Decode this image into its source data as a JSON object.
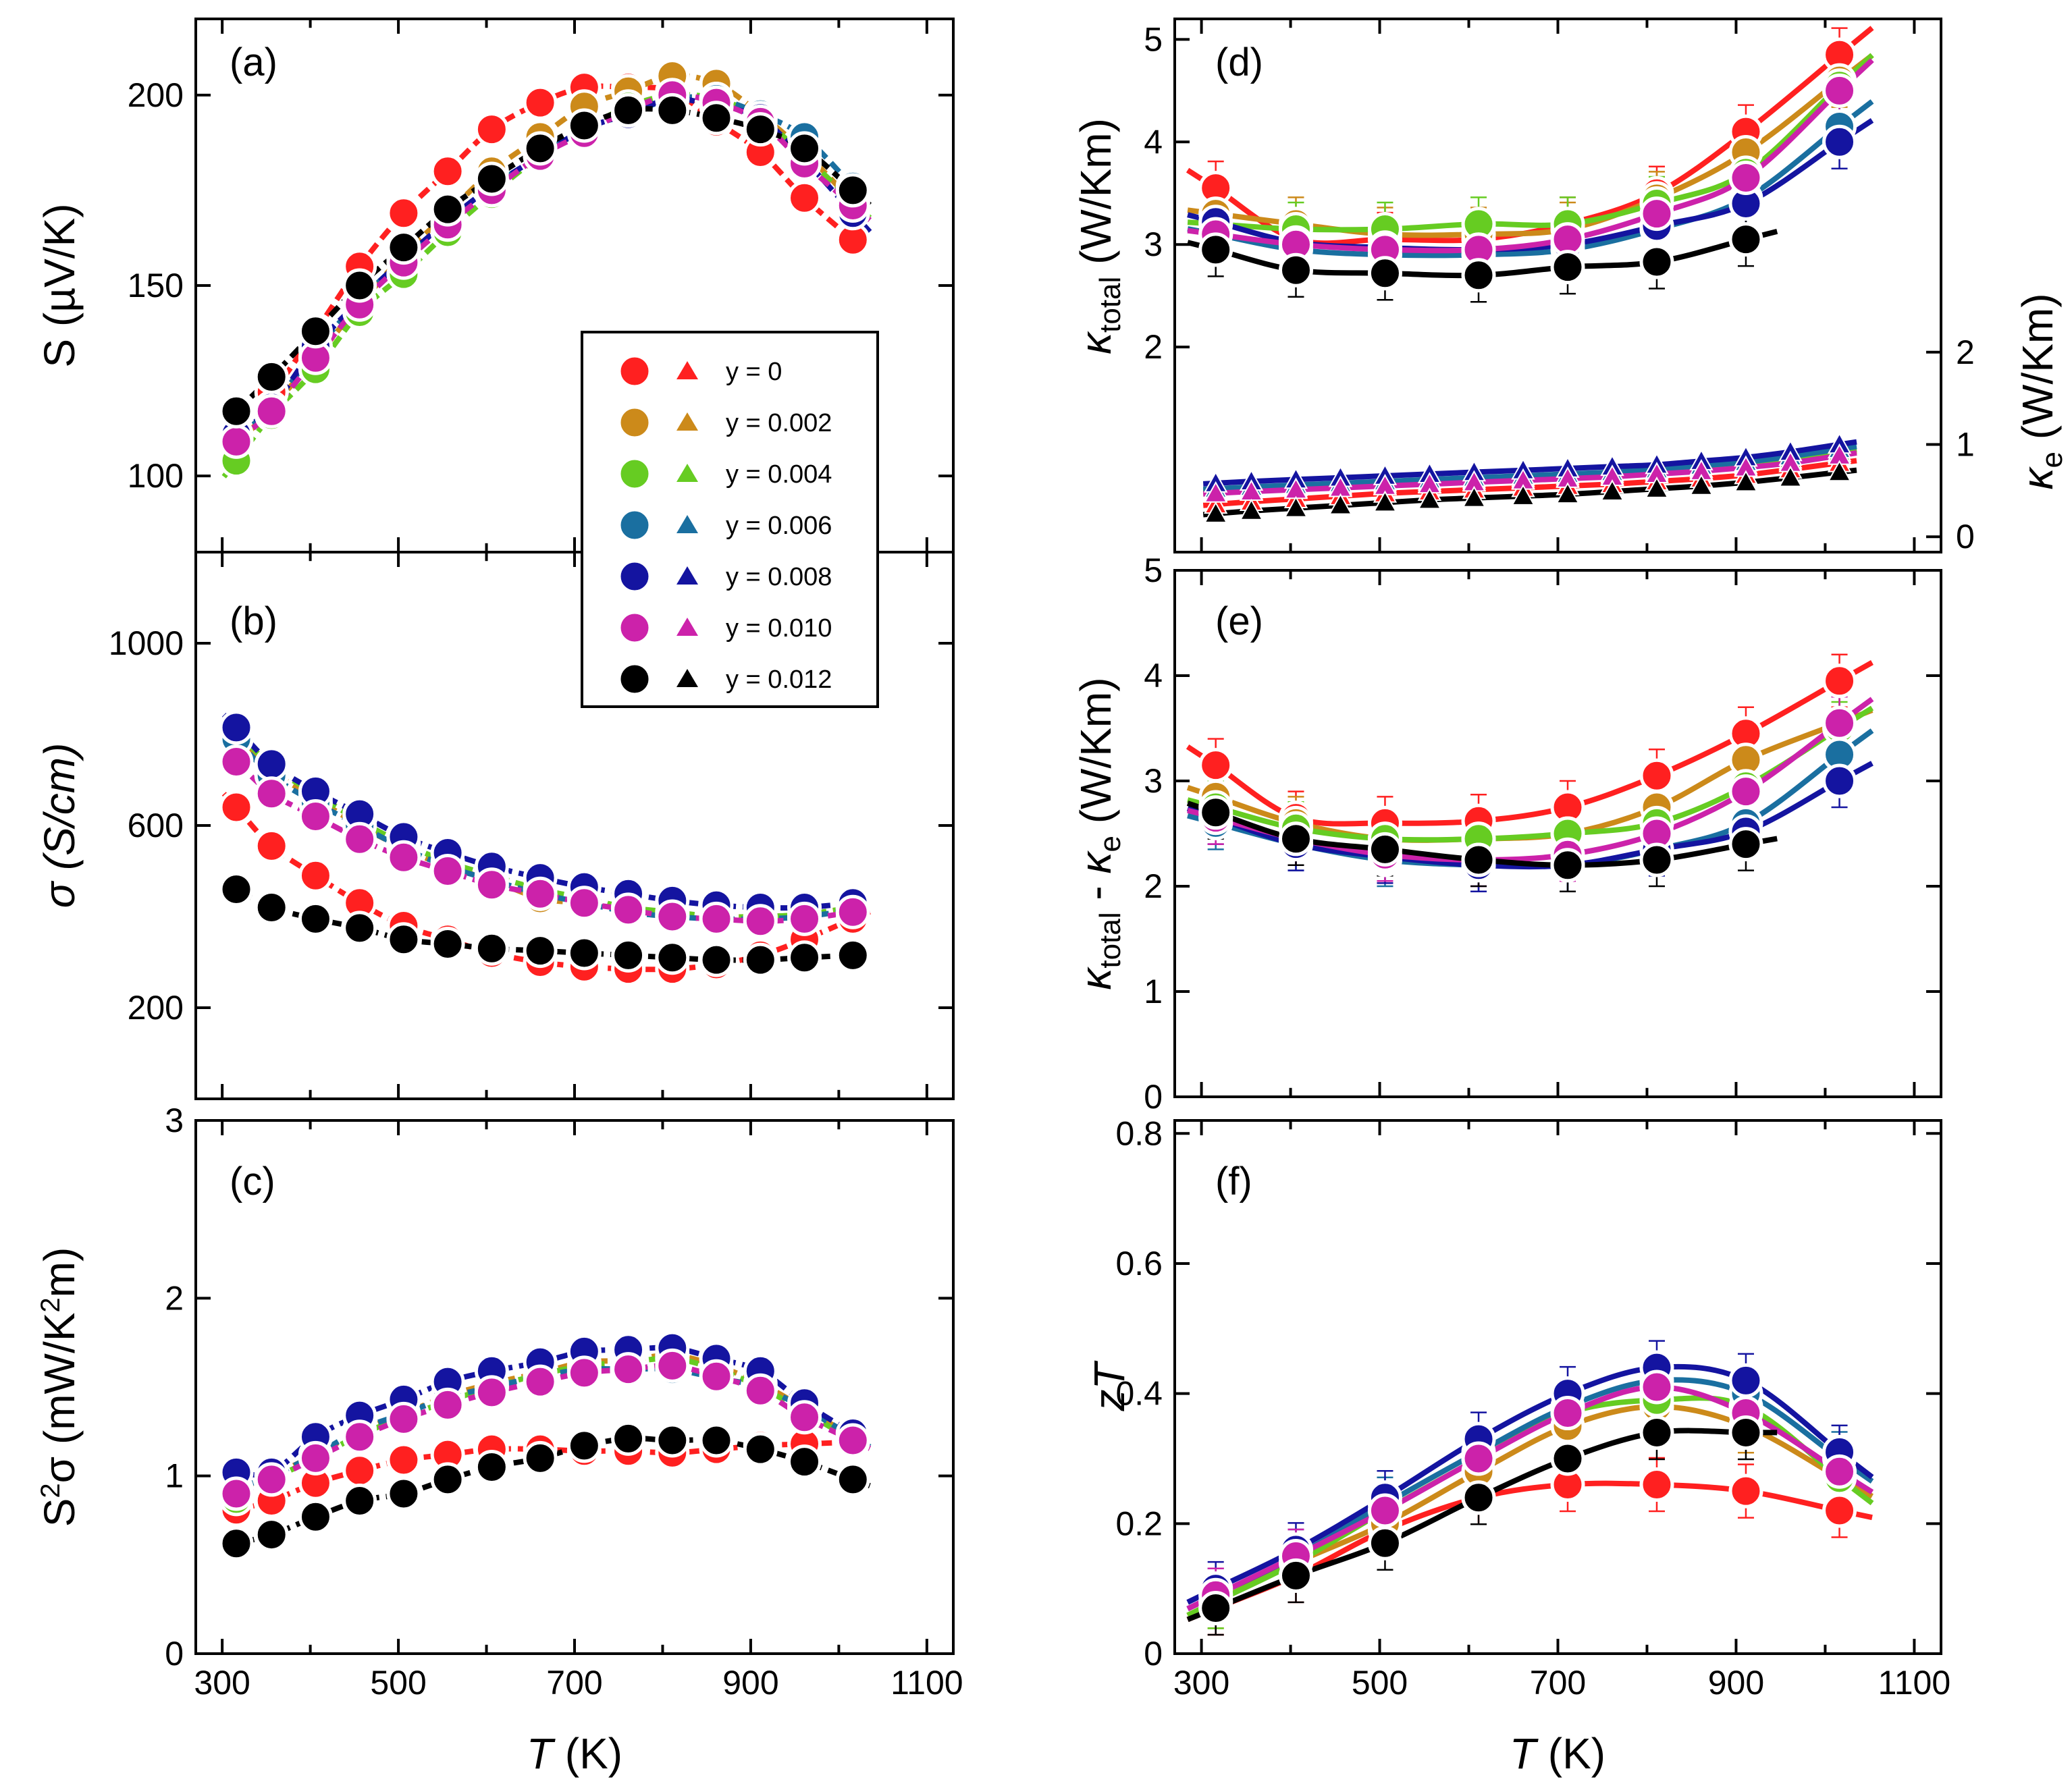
{
  "figure": {
    "x_axis_label_var": "T",
    "x_axis_label_unit": " (K)",
    "x_ticks": [
      300,
      500,
      700,
      900,
      1100
    ]
  },
  "legend": {
    "entries": [
      {
        "label": "y = 0",
        "color": "#ff2020"
      },
      {
        "label": "y = 0.002",
        "color": "#cc8a1a"
      },
      {
        "label": "y = 0.004",
        "color": "#66cc22"
      },
      {
        "label": "y = 0.006",
        "color": "#1a6fa0"
      },
      {
        "label": "y = 0.008",
        "color": "#1414a0"
      },
      {
        "label": "y = 0.010",
        "color": "#cc22aa"
      },
      {
        "label": "y = 0.012",
        "color": "#000000"
      }
    ]
  },
  "chart_data": [
    {
      "panel": "(a)",
      "type": "scatter",
      "ylabel": "S (µV/K)",
      "xlim": [
        270,
        1130
      ],
      "ylim": [
        80,
        220
      ],
      "yticks": [
        100,
        150,
        200
      ],
      "x": [
        316,
        356,
        406,
        456,
        506,
        556,
        606,
        661,
        711,
        761,
        811,
        861,
        911,
        961,
        1016
      ],
      "series": [
        {
          "name": "y = 0",
          "values": [
            116,
            122,
            138,
            155,
            169,
            180,
            191,
            198,
            202,
            202,
            201,
            193,
            185,
            173,
            162
          ]
        },
        {
          "name": "y = 0.002",
          "values": [
            108,
            118,
            131,
            145,
            158,
            169,
            180,
            189,
            197,
            201,
            205,
            203,
            195,
            185,
            172
          ]
        },
        {
          "name": "y = 0.004",
          "values": [
            104,
            116,
            128,
            143,
            153,
            164,
            174,
            184,
            191,
            197,
            200,
            199,
            194,
            184,
            172
          ]
        },
        {
          "name": "y = 0.006",
          "values": [
            110,
            118,
            133,
            146,
            157,
            167,
            176,
            184,
            191,
            195,
            199,
            199,
            195,
            189,
            176
          ]
        },
        {
          "name": "y = 0.008",
          "values": [
            111,
            118,
            134,
            146,
            157,
            167,
            176,
            184,
            191,
            195,
            199,
            197,
            194,
            183,
            169
          ]
        },
        {
          "name": "y = 0.010",
          "values": [
            109,
            117,
            131,
            145,
            156,
            166,
            175,
            184,
            190,
            196,
            200,
            198,
            193,
            182,
            171
          ]
        },
        {
          "name": "y = 0.012",
          "values": [
            117,
            126,
            138,
            150,
            160,
            170,
            178,
            186,
            192,
            196,
            196,
            194,
            191,
            186,
            175
          ]
        }
      ]
    },
    {
      "panel": "(b)",
      "type": "scatter",
      "ylabel": "σ (S/cm)",
      "xlim": [
        270,
        1130
      ],
      "ylim": [
        0,
        1200
      ],
      "yticks": [
        200,
        600,
        1000
      ],
      "x": [
        316,
        356,
        406,
        456,
        506,
        556,
        606,
        661,
        711,
        761,
        811,
        861,
        911,
        961,
        1016
      ],
      "series": [
        {
          "name": "y = 0",
          "values": [
            640,
            555,
            490,
            430,
            380,
            350,
            320,
            300,
            290,
            285,
            285,
            295,
            315,
            350,
            395
          ]
        },
        {
          "name": "y = 0.002",
          "values": [
            800,
            720,
            660,
            600,
            550,
            510,
            480,
            440,
            430,
            420,
            405,
            400,
            400,
            405,
            420
          ]
        },
        {
          "name": "y = 0.004",
          "values": [
            810,
            730,
            670,
            610,
            560,
            520,
            490,
            460,
            440,
            420,
            410,
            400,
            400,
            405,
            420
          ]
        },
        {
          "name": "y = 0.006",
          "values": [
            790,
            710,
            650,
            600,
            550,
            510,
            480,
            450,
            430,
            410,
            400,
            395,
            395,
            400,
            415
          ]
        },
        {
          "name": "y = 0.008",
          "values": [
            815,
            735,
            675,
            625,
            575,
            540,
            510,
            485,
            465,
            450,
            435,
            425,
            420,
            420,
            430
          ]
        },
        {
          "name": "y = 0.010",
          "values": [
            740,
            670,
            620,
            570,
            530,
            500,
            470,
            450,
            430,
            415,
            400,
            395,
            390,
            395,
            410
          ]
        },
        {
          "name": "y = 0.012",
          "values": [
            460,
            420,
            395,
            375,
            350,
            340,
            330,
            325,
            320,
            315,
            310,
            305,
            305,
            310,
            315
          ]
        }
      ]
    },
    {
      "panel": "(c)",
      "type": "scatter",
      "ylabel_pre": "S",
      "ylabel_sup": "2",
      "ylabel_mid": "σ (mW/K",
      "ylabel_sup2": "2",
      "ylabel_end": "m)",
      "xlim": [
        270,
        1130
      ],
      "ylim": [
        0,
        3
      ],
      "yticks": [
        0,
        1,
        2,
        3
      ],
      "x": [
        316,
        356,
        406,
        456,
        506,
        556,
        606,
        661,
        711,
        761,
        811,
        861,
        911,
        961,
        1016
      ],
      "series": [
        {
          "name": "y = 0",
          "values": [
            0.81,
            0.86,
            0.96,
            1.03,
            1.09,
            1.12,
            1.15,
            1.15,
            1.14,
            1.14,
            1.13,
            1.15,
            1.17,
            1.18,
            1.19
          ]
        },
        {
          "name": "y = 0.002",
          "values": [
            0.92,
            1.0,
            1.12,
            1.25,
            1.35,
            1.45,
            1.52,
            1.58,
            1.64,
            1.65,
            1.68,
            1.62,
            1.52,
            1.38,
            1.22
          ]
        },
        {
          "name": "y = 0.004",
          "values": [
            0.87,
            0.98,
            1.1,
            1.23,
            1.33,
            1.42,
            1.5,
            1.57,
            1.62,
            1.64,
            1.66,
            1.6,
            1.5,
            1.36,
            1.2
          ]
        },
        {
          "name": "y = 0.006",
          "values": [
            0.93,
            1.0,
            1.12,
            1.26,
            1.35,
            1.44,
            1.5,
            1.56,
            1.6,
            1.6,
            1.6,
            1.55,
            1.5,
            1.38,
            1.22
          ]
        },
        {
          "name": "y = 0.008",
          "values": [
            1.02,
            1.02,
            1.22,
            1.34,
            1.43,
            1.53,
            1.59,
            1.64,
            1.7,
            1.71,
            1.72,
            1.66,
            1.59,
            1.41,
            1.24
          ]
        },
        {
          "name": "y = 0.010",
          "values": [
            0.9,
            0.98,
            1.1,
            1.22,
            1.32,
            1.4,
            1.47,
            1.53,
            1.58,
            1.6,
            1.62,
            1.56,
            1.48,
            1.33,
            1.2
          ]
        },
        {
          "name": "y = 0.012",
          "values": [
            0.62,
            0.67,
            0.77,
            0.86,
            0.9,
            0.98,
            1.05,
            1.1,
            1.17,
            1.21,
            1.2,
            1.2,
            1.15,
            1.08,
            0.98
          ]
        }
      ]
    },
    {
      "panel": "(d)",
      "type": "scatter",
      "ylabel_left": "κ",
      "ylabel_left_sub": "total",
      "ylabel_left_unit": " (W/Km)",
      "ylabel_right": "κ",
      "ylabel_right_sub": "e",
      "ylabel_right_unit": " (W/Km)",
      "xlim": [
        270,
        1130
      ],
      "ylim": [
        0,
        5.2
      ],
      "yticks": [
        2,
        3,
        4,
        5
      ],
      "yticks_right": [
        0,
        1,
        2
      ],
      "right_axis_note": "κ_e plotted against right axis, which maps 0..2 W/Km onto left-axis 0.15..1.95",
      "x": [
        316,
        406,
        506,
        611,
        711,
        811,
        911,
        1016
      ],
      "series_total": [
        {
          "name": "y = 0",
          "values": [
            3.55,
            3.05,
            3.05,
            3.05,
            3.2,
            3.5,
            4.1,
            4.85
          ]
        },
        {
          "name": "y = 0.002",
          "values": [
            3.3,
            3.2,
            3.1,
            3.1,
            3.15,
            3.45,
            3.9,
            4.6
          ]
        },
        {
          "name": "y = 0.004",
          "values": [
            3.2,
            3.15,
            3.15,
            3.2,
            3.2,
            3.4,
            3.7,
            4.55
          ]
        },
        {
          "name": "y = 0.006",
          "values": [
            3.1,
            2.95,
            2.9,
            2.9,
            2.95,
            3.15,
            3.45,
            4.15
          ]
        },
        {
          "name": "y = 0.008",
          "values": [
            3.22,
            3.02,
            2.97,
            2.95,
            3.0,
            3.18,
            3.4,
            4.0
          ]
        },
        {
          "name": "y = 0.010",
          "values": [
            3.1,
            3.0,
            2.95,
            2.95,
            3.05,
            3.3,
            3.65,
            4.5
          ]
        },
        {
          "name": "y = 0.012",
          "values": [
            2.95,
            2.75,
            2.72,
            2.7,
            2.78,
            2.83,
            3.05
          ]
        }
      ],
      "x_e": [
        316,
        356,
        406,
        456,
        506,
        556,
        606,
        661,
        711,
        761,
        811,
        861,
        911,
        961,
        1016
      ],
      "series_e": [
        {
          "name": "y = 0",
          "values": [
            0.35,
            0.38,
            0.41,
            0.44,
            0.47,
            0.49,
            0.51,
            0.53,
            0.55,
            0.57,
            0.6,
            0.63,
            0.67,
            0.73,
            0.8
          ]
        },
        {
          "name": "y = 0.002",
          "values": [
            0.48,
            0.5,
            0.52,
            0.54,
            0.56,
            0.58,
            0.6,
            0.62,
            0.64,
            0.66,
            0.69,
            0.72,
            0.76,
            0.82,
            0.9
          ]
        },
        {
          "name": "y = 0.004",
          "values": [
            0.5,
            0.52,
            0.54,
            0.56,
            0.58,
            0.6,
            0.62,
            0.64,
            0.66,
            0.68,
            0.71,
            0.74,
            0.78,
            0.84,
            0.92
          ]
        },
        {
          "name": "y = 0.006",
          "values": [
            0.52,
            0.54,
            0.56,
            0.58,
            0.6,
            0.62,
            0.64,
            0.66,
            0.68,
            0.7,
            0.73,
            0.77,
            0.81,
            0.87,
            0.95
          ]
        },
        {
          "name": "y = 0.008",
          "values": [
            0.58,
            0.6,
            0.62,
            0.64,
            0.66,
            0.68,
            0.7,
            0.72,
            0.74,
            0.76,
            0.78,
            0.82,
            0.86,
            0.92,
            1.0
          ]
        },
        {
          "name": "y = 0.010",
          "values": [
            0.47,
            0.49,
            0.51,
            0.53,
            0.55,
            0.57,
            0.59,
            0.61,
            0.63,
            0.65,
            0.68,
            0.71,
            0.75,
            0.8,
            0.88
          ]
        },
        {
          "name": "y = 0.012",
          "values": [
            0.25,
            0.28,
            0.31,
            0.34,
            0.37,
            0.4,
            0.42,
            0.44,
            0.46,
            0.49,
            0.52,
            0.55,
            0.59,
            0.64,
            0.7
          ]
        }
      ]
    },
    {
      "panel": "(e)",
      "type": "scatter",
      "ylabel": "κtotal - κe (W/Km)",
      "ylabel_k1": "κ",
      "ylabel_sub1": "total",
      "ylabel_dash": " - ",
      "ylabel_k2": "κ",
      "ylabel_sub2": "e",
      "ylabel_unit": " (W/Km)",
      "xlim": [
        270,
        1130
      ],
      "ylim": [
        0,
        5
      ],
      "yticks": [
        0,
        1,
        2,
        3,
        4,
        5
      ],
      "x": [
        316,
        406,
        506,
        611,
        711,
        811,
        911,
        1016
      ],
      "series": [
        {
          "name": "y = 0",
          "values": [
            3.15,
            2.65,
            2.6,
            2.62,
            2.75,
            3.05,
            3.45,
            3.95
          ]
        },
        {
          "name": "y = 0.002",
          "values": [
            2.85,
            2.6,
            2.45,
            2.45,
            2.5,
            2.75,
            3.2,
            3.55
          ]
        },
        {
          "name": "y = 0.004",
          "values": [
            2.75,
            2.55,
            2.45,
            2.45,
            2.5,
            2.6,
            2.95,
            3.5
          ]
        },
        {
          "name": "y = 0.006",
          "values": [
            2.6,
            2.4,
            2.25,
            2.2,
            2.2,
            2.35,
            2.6,
            3.25
          ]
        },
        {
          "name": "y = 0.008",
          "values": [
            2.65,
            2.4,
            2.28,
            2.2,
            2.2,
            2.35,
            2.52,
            3.0
          ]
        },
        {
          "name": "y = 0.010",
          "values": [
            2.65,
            2.45,
            2.3,
            2.25,
            2.3,
            2.5,
            2.9,
            3.55
          ]
        },
        {
          "name": "y = 0.012",
          "values": [
            2.7,
            2.45,
            2.35,
            2.25,
            2.2,
            2.25,
            2.4
          ]
        }
      ]
    },
    {
      "panel": "(f)",
      "type": "scatter",
      "ylabel": "zT",
      "xlim": [
        270,
        1130
      ],
      "ylim": [
        0,
        0.82
      ],
      "yticks": [
        0,
        0.2,
        0.4,
        0.6,
        0.8
      ],
      "x": [
        316,
        406,
        506,
        611,
        711,
        811,
        911,
        1016
      ],
      "series": [
        {
          "name": "y = 0",
          "values": [
            0.07,
            0.12,
            0.19,
            0.24,
            0.26,
            0.26,
            0.25,
            0.22
          ]
        },
        {
          "name": "y = 0.002",
          "values": [
            0.08,
            0.14,
            0.2,
            0.28,
            0.35,
            0.38,
            0.35,
            0.27
          ]
        },
        {
          "name": "y = 0.004",
          "values": [
            0.08,
            0.14,
            0.22,
            0.3,
            0.37,
            0.39,
            0.38,
            0.27
          ]
        },
        {
          "name": "y = 0.006",
          "values": [
            0.09,
            0.15,
            0.23,
            0.31,
            0.38,
            0.42,
            0.4,
            0.3
          ]
        },
        {
          "name": "y = 0.008",
          "values": [
            0.1,
            0.16,
            0.24,
            0.33,
            0.4,
            0.44,
            0.42,
            0.31
          ]
        },
        {
          "name": "y = 0.010",
          "values": [
            0.09,
            0.15,
            0.22,
            0.3,
            0.37,
            0.41,
            0.37,
            0.28
          ]
        },
        {
          "name": "y = 0.012",
          "values": [
            0.07,
            0.12,
            0.17,
            0.24,
            0.3,
            0.34,
            0.34
          ]
        }
      ]
    }
  ]
}
